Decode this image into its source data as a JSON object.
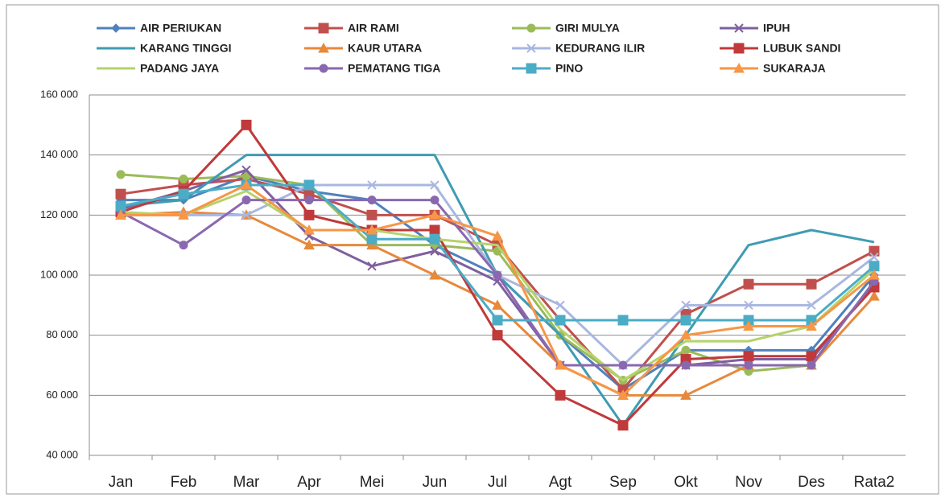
{
  "chart_data": {
    "type": "line",
    "categories": [
      "Jan",
      "Feb",
      "Mar",
      "Apr",
      "Mei",
      "Jun",
      "Jul",
      "Agt",
      "Sep",
      "Okt",
      "Nov",
      "Des",
      "Rata2"
    ],
    "ylim": [
      40000,
      160000
    ],
    "yticks": [
      {
        "value": 40000,
        "label": "40 000"
      },
      {
        "value": 60000,
        "label": "60 000"
      },
      {
        "value": 80000,
        "label": "80 000"
      },
      {
        "value": 100000,
        "label": "100 000"
      },
      {
        "value": 120000,
        "label": "120 000"
      },
      {
        "value": 140000,
        "label": "140 000"
      },
      {
        "value": 160000,
        "label": "160 000"
      }
    ],
    "grid": true,
    "legend": "top",
    "series": [
      {
        "name": "AIR PERIUKAN",
        "color": "#4f81bd",
        "marker": "diamond",
        "values": [
          125000,
          125000,
          133000,
          128000,
          125000,
          110000,
          100000,
          80000,
          62000,
          75000,
          75000,
          75000,
          100000
        ]
      },
      {
        "name": "AIR RAMI",
        "color": "#c0504d",
        "marker": "square",
        "values": [
          127000,
          130000,
          132000,
          127000,
          120000,
          120000,
          110000,
          85000,
          62000,
          87000,
          97000,
          97000,
          108000
        ]
      },
      {
        "name": "GIRI MULYA",
        "color": "#9bbb59",
        "marker": "circle",
        "values": [
          133500,
          132000,
          133000,
          130000,
          110000,
          110000,
          108000,
          80000,
          65000,
          75000,
          68000,
          70000,
          98000
        ]
      },
      {
        "name": "IPUH",
        "color": "#7f5f9f",
        "marker": "x",
        "values": [
          122000,
          128000,
          135000,
          113000,
          103000,
          108000,
          98000,
          70000,
          70000,
          70000,
          72000,
          72000,
          97000
        ]
      },
      {
        "name": "KARANG TINGGI",
        "color": "#3f9bb3",
        "marker": "none",
        "values": [
          123000,
          125000,
          140000,
          140000,
          140000,
          140000,
          100000,
          80000,
          50000,
          80000,
          110000,
          115000,
          111000
        ]
      },
      {
        "name": "KAUR UTARA",
        "color": "#e8883a",
        "marker": "triangle",
        "values": [
          120000,
          121000,
          120000,
          110000,
          110000,
          100000,
          90000,
          70000,
          60000,
          60000,
          70000,
          70000,
          93000
        ]
      },
      {
        "name": "KEDURANG ILIR",
        "color": "#a9b7e0",
        "marker": "x",
        "values": [
          120000,
          120000,
          120000,
          130000,
          130000,
          130000,
          100000,
          90000,
          70000,
          90000,
          90000,
          90000,
          106000
        ]
      },
      {
        "name": "LUBUK SANDI",
        "color": "#c0393b",
        "marker": "square",
        "values": [
          121000,
          128000,
          150000,
          120000,
          115000,
          115000,
          80000,
          60000,
          50000,
          72000,
          73000,
          73000,
          96000
        ]
      },
      {
        "name": "PADANG JAYA",
        "color": "#b5d36b",
        "marker": "none",
        "values": [
          121000,
          120000,
          128000,
          115000,
          115000,
          112000,
          110000,
          82000,
          65000,
          78000,
          78000,
          83000,
          102000
        ]
      },
      {
        "name": "PEMATANG TIGA",
        "color": "#8a68b0",
        "marker": "circle",
        "values": [
          121000,
          110000,
          125000,
          125000,
          125000,
          125000,
          100000,
          70000,
          70000,
          70000,
          70000,
          70000,
          98000
        ]
      },
      {
        "name": "PINO",
        "color": "#4bacc6",
        "marker": "square",
        "values": [
          123000,
          127000,
          130000,
          130000,
          112000,
          112000,
          85000,
          85000,
          85000,
          85000,
          85000,
          85000,
          103000
        ]
      },
      {
        "name": "SUKARAJA",
        "color": "#f79646",
        "marker": "triangle",
        "values": [
          120000,
          120000,
          130000,
          115000,
          115000,
          120000,
          113000,
          70000,
          60000,
          80000,
          83000,
          83000,
          100000
        ]
      }
    ]
  }
}
